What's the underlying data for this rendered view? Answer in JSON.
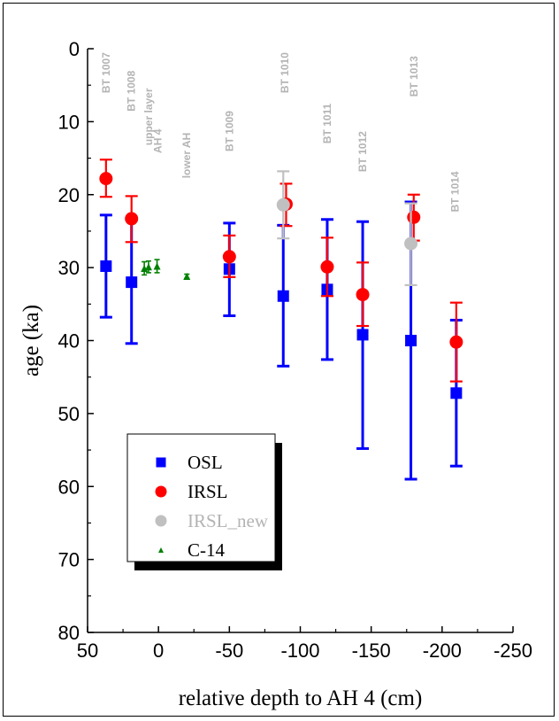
{
  "chart_data": {
    "type": "scatter",
    "xlabel": "relative depth to AH 4  (cm)",
    "ylabel": "age (ka)",
    "xlim": [
      50,
      -250
    ],
    "ylim": [
      0,
      80
    ],
    "y_inverted": true,
    "x_ticks": [
      "50",
      "0",
      "-50",
      "-100",
      "-150",
      "-200",
      "-250"
    ],
    "y_ticks": [
      "0",
      "10",
      "20",
      "30",
      "40",
      "50",
      "60",
      "70",
      "80"
    ],
    "legend_position": "bottom-left",
    "series": [
      {
        "name": "OSL",
        "color": "#0000ff",
        "marker": "square",
        "points": [
          {
            "x": 37,
            "y": 29.8,
            "lo": 22.8,
            "hi": 36.8
          },
          {
            "x": 19,
            "y": 32.0,
            "lo": 23.2,
            "hi": 40.4
          },
          {
            "x": -50,
            "y": 30.2,
            "lo": 23.9,
            "hi": 36.6
          },
          {
            "x": -88,
            "y": 33.9,
            "lo": 24.2,
            "hi": 43.5
          },
          {
            "x": -119,
            "y": 33.0,
            "lo": 23.4,
            "hi": 42.6
          },
          {
            "x": -144,
            "y": 39.2,
            "lo": 23.7,
            "hi": 54.8
          },
          {
            "x": -178,
            "y": 40.0,
            "lo": 21.0,
            "hi": 59.0
          },
          {
            "x": -210,
            "y": 47.2,
            "lo": 37.2,
            "hi": 57.2
          }
        ]
      },
      {
        "name": "IRSL",
        "color": "#ff0000",
        "marker": "circle",
        "points": [
          {
            "x": 37,
            "y": 17.8,
            "lo": 15.2,
            "hi": 20.3
          },
          {
            "x": 19,
            "y": 23.3,
            "lo": 20.2,
            "hi": 26.5
          },
          {
            "x": -50,
            "y": 28.5,
            "lo": 25.6,
            "hi": 31.3
          },
          {
            "x": -90,
            "y": 21.3,
            "lo": 18.5,
            "hi": 24.3
          },
          {
            "x": -119,
            "y": 29.9,
            "lo": 25.9,
            "hi": 33.9
          },
          {
            "x": -144,
            "y": 33.7,
            "lo": 29.3,
            "hi": 38.0
          },
          {
            "x": -180,
            "y": 23.1,
            "lo": 20.0,
            "hi": 26.3
          },
          {
            "x": -210,
            "y": 40.2,
            "lo": 34.8,
            "hi": 45.6
          }
        ]
      },
      {
        "name": "IRSL_new",
        "color": "#c0c0c0",
        "marker": "circle",
        "points": [
          {
            "x": -88,
            "y": 21.4,
            "lo": 16.8,
            "hi": 26.0
          },
          {
            "x": -178,
            "y": 26.7,
            "lo": 21.2,
            "hi": 32.4
          }
        ]
      },
      {
        "name": "C-14",
        "color": "#008000",
        "marker": "triangle",
        "points": [
          {
            "x": 10,
            "y": 30.1,
            "lo": 29.2,
            "hi": 31.0
          },
          {
            "x": 7,
            "y": 29.9,
            "lo": 29.1,
            "hi": 30.7
          },
          {
            "x": 1,
            "y": 29.8,
            "lo": 28.9,
            "hi": 30.7
          },
          {
            "x": -20,
            "y": 31.2,
            "lo": 30.9,
            "hi": 31.5
          }
        ]
      }
    ],
    "annotations": [
      {
        "text": "BT 1007",
        "x": 37,
        "y": 0.5
      },
      {
        "text": "BT 1008",
        "x": 19,
        "y": 3.0
      },
      {
        "text": "upper layer",
        "x": 7,
        "y": 5.4
      },
      {
        "text": "AH 4",
        "x": 0.5,
        "y": 11.0
      },
      {
        "text": "lower AH",
        "x": -20,
        "y": 11.5
      },
      {
        "text": "BT 1009",
        "x": -50,
        "y": 8.5
      },
      {
        "text": "BT 1010",
        "x": -89,
        "y": 0.5
      },
      {
        "text": "BT 1011",
        "x": -119,
        "y": 7.5
      },
      {
        "text": "BT 1012",
        "x": -144,
        "y": 11.3
      },
      {
        "text": "BT 1013",
        "x": -180,
        "y": 1.0
      },
      {
        "text": "BT 1014",
        "x": -209,
        "y": 16.8
      }
    ]
  }
}
